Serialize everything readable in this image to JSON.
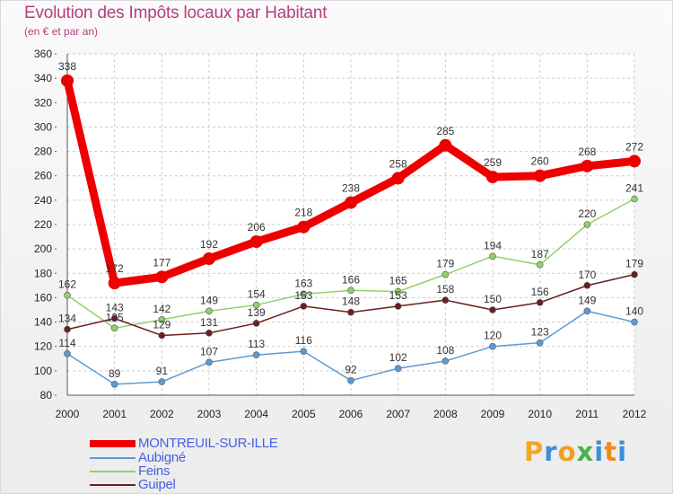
{
  "chart_data": {
    "type": "line",
    "title": "Evolution des Impôts locaux par Habitant",
    "subtitle": "(en € et par an)",
    "categories": [
      "2000",
      "2001",
      "2002",
      "2003",
      "2004",
      "2005",
      "2006",
      "2007",
      "2008",
      "2009",
      "2010",
      "2011",
      "2012"
    ],
    "ylim": [
      80,
      360
    ],
    "yticks": [
      80,
      100,
      120,
      140,
      160,
      180,
      200,
      220,
      240,
      260,
      280,
      300,
      320,
      340,
      360
    ],
    "grid": true,
    "series": [
      {
        "name": "MONTREUIL-SUR-ILLE",
        "color": "#ee0000",
        "values": [
          338,
          172,
          177,
          192,
          206,
          218,
          238,
          258,
          285,
          259,
          260,
          268,
          272
        ],
        "labels": [
          "338",
          "172",
          "177",
          "192",
          "206",
          "218",
          "238",
          "258",
          "285",
          "259",
          "260",
          "268",
          "272"
        ],
        "emphasis": true
      },
      {
        "name": "Aubigné",
        "color": "#5b9bd5",
        "values": [
          114,
          89,
          91,
          107,
          113,
          116,
          92,
          102,
          108,
          120,
          123,
          149,
          140
        ],
        "labels": [
          "114",
          "89",
          "91",
          "107",
          "113",
          "116",
          "92",
          "102",
          "108",
          "120",
          "123",
          "149",
          "140"
        ]
      },
      {
        "name": "Feins",
        "color": "#8fd16a",
        "values": [
          162,
          135,
          142,
          149,
          154,
          163,
          166,
          165,
          179,
          194,
          187,
          220,
          241
        ],
        "labels": [
          "162",
          "135",
          "142",
          "149",
          "154",
          "163",
          "166",
          "165",
          "179",
          "194",
          "187",
          "220",
          "241"
        ]
      },
      {
        "name": "Guipel",
        "color": "#6b1e1e",
        "values": [
          134,
          143,
          129,
          131,
          139,
          153,
          148,
          153,
          158,
          150,
          156,
          170,
          179
        ],
        "labels": [
          "134",
          "143",
          "129",
          "131",
          "139",
          "153",
          "148",
          "153",
          "158",
          "150",
          "156",
          "170",
          "179"
        ]
      }
    ]
  },
  "legend": {
    "items": [
      "MONTREUIL-SUR-ILLE",
      "Aubigné",
      "Feins",
      "Guipel"
    ]
  },
  "brand": {
    "letters": [
      "P",
      "r",
      "o",
      "x",
      "i",
      "t",
      "i"
    ],
    "colors": [
      "#f5a623",
      "#3a8fd9",
      "#f0a020",
      "#4caf50",
      "#3a8fd9",
      "#f08a1e",
      "#3a8fd9"
    ]
  }
}
